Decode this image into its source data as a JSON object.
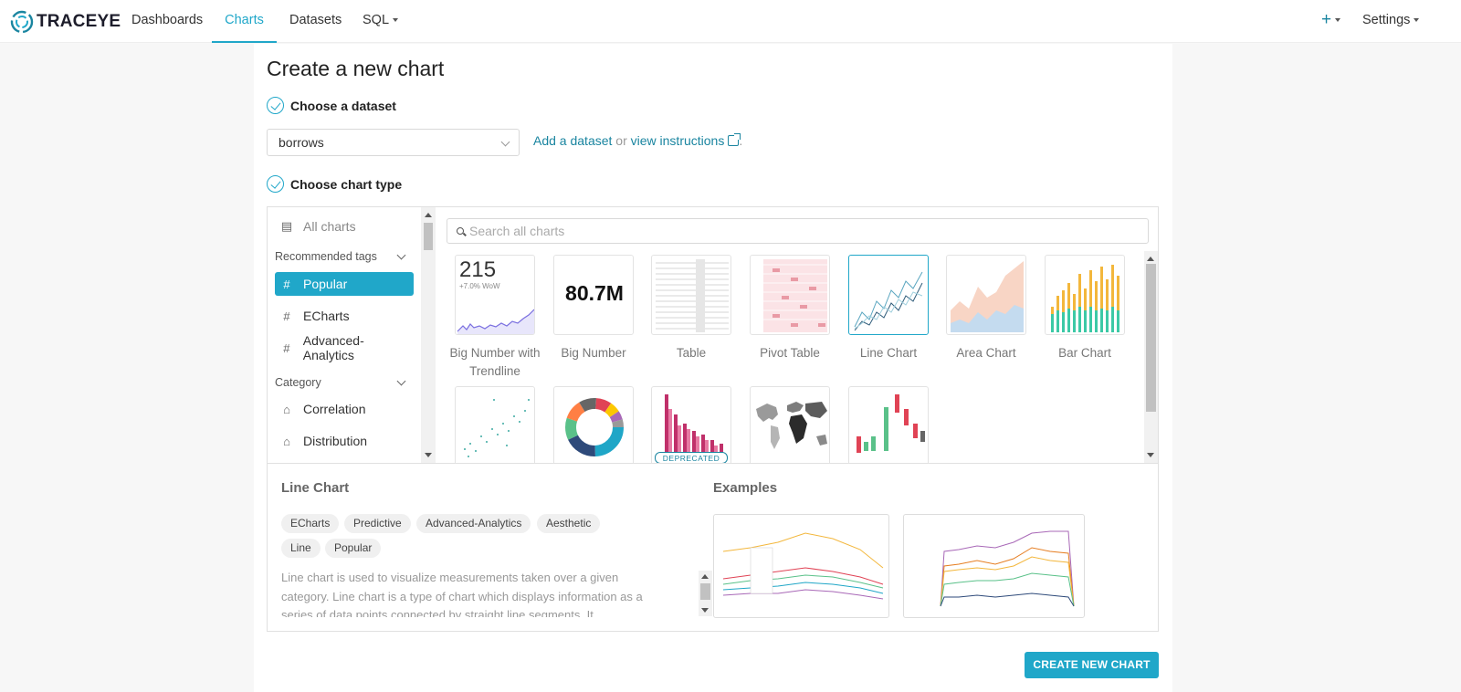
{
  "app": {
    "brand": "TRACEYE"
  },
  "nav": {
    "items": [
      {
        "label": "Dashboards"
      },
      {
        "label": "Charts",
        "active": true
      },
      {
        "label": "Datasets"
      },
      {
        "label": "SQL"
      }
    ],
    "plus": "+",
    "settings": "Settings"
  },
  "page": {
    "title": "Create a new chart",
    "step1": "Choose a dataset",
    "step2": "Choose chart type"
  },
  "dataset": {
    "selected": "borrows",
    "add_link": "Add a dataset",
    "or_text": "or",
    "instructions_link": "view instructions",
    "period": "."
  },
  "sidebar": {
    "all_charts": "All charts",
    "recommended_tags": "Recommended tags",
    "tags": [
      {
        "label": "Popular",
        "active": true
      },
      {
        "label": "ECharts"
      },
      {
        "label": "Advanced-Analytics"
      }
    ],
    "category": "Category",
    "categories": [
      {
        "label": "Correlation"
      },
      {
        "label": "Distribution"
      }
    ]
  },
  "search": {
    "placeholder": "Search all charts"
  },
  "gallery": {
    "tiles": [
      {
        "label": "Big Number with Trendline",
        "big": "215",
        "sub": "+7.0% WoW"
      },
      {
        "label": "Big Number",
        "big": "80.7M"
      },
      {
        "label": "Table"
      },
      {
        "label": "Pivot Table"
      },
      {
        "label": "Line Chart",
        "selected": true
      },
      {
        "label": "Area Chart"
      },
      {
        "label": "Bar Chart"
      }
    ],
    "deprecated_badge": "DEPRECATED"
  },
  "detail": {
    "title": "Line Chart",
    "tags": [
      "ECharts",
      "Predictive",
      "Advanced-Analytics",
      "Aesthetic",
      "Line",
      "Popular"
    ],
    "description": "Line chart is used to visualize measurements taken over a given category. Line chart is a type of chart which displays information as a series of data points connected by straight line segments. It",
    "examples_title": "Examples"
  },
  "actions": {
    "create": "CREATE NEW CHART"
  },
  "colors": {
    "accent": "#20a7c9",
    "link": "#1a85a0"
  }
}
